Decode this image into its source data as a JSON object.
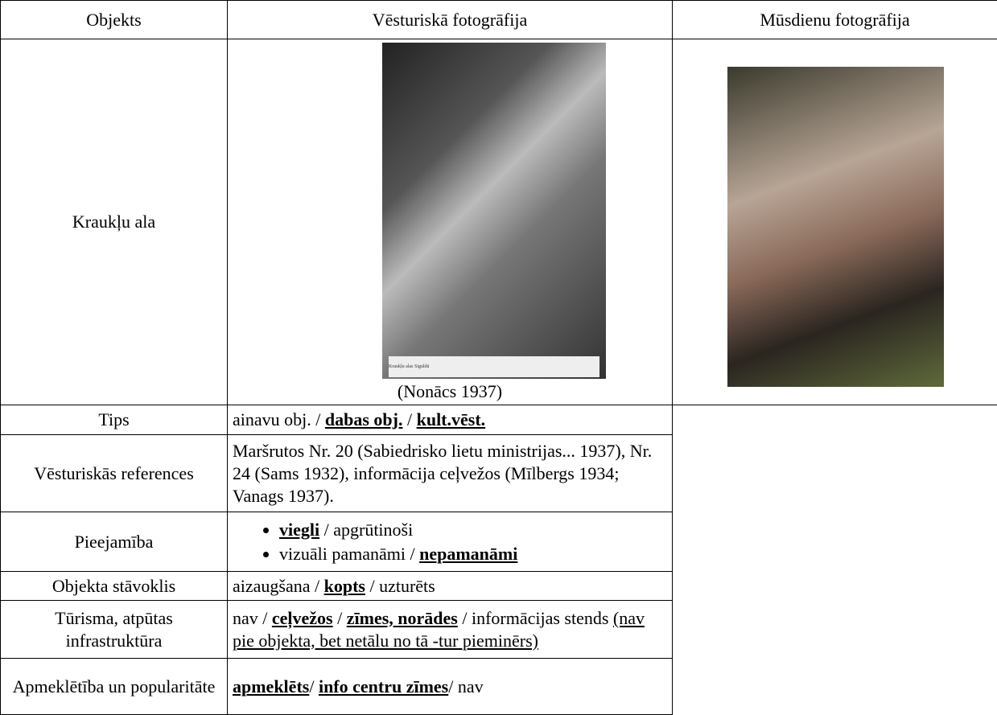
{
  "table": {
    "header": [
      "Objekts",
      "Vēsturiskā fotogrāfija",
      "Mūsdienu fotogrāfija"
    ],
    "photo_row": {
      "label": "Kraukļu ala",
      "historical_inscription": "Kraukļu alas Siguldā",
      "historical_caption": "(Nonācs 1937)"
    },
    "rows": [
      {
        "label": "Tips",
        "parts": [
          {
            "text": "ainavu obj. / "
          },
          {
            "text": "dabas obj.",
            "bold": true,
            "underline": true
          },
          {
            "text": " / "
          },
          {
            "text": "kult.vēst.",
            "bold": true,
            "underline": true
          }
        ]
      },
      {
        "label": "Vēsturiskās references",
        "parts": [
          {
            "text": "Maršrutos Nr. 20 (Sabiedrisko lietu ministrijas... 1937), Nr. 24 (Sams 1932), informācija ceļvežos (Mīlbergs 1934; Vanags 1937)."
          }
        ]
      },
      {
        "label": "Pieejamība",
        "bullets": [
          [
            {
              "text": "viegli",
              "bold": true,
              "underline": true
            },
            {
              "text": " / apgrūtinoši"
            }
          ],
          [
            {
              "text": "vizuāli pamanāmi / "
            },
            {
              "text": "nepamanāmi",
              "bold": true,
              "underline": true
            }
          ]
        ]
      },
      {
        "label": "Objekta stāvoklis",
        "parts": [
          {
            "text": "aizaugšana / "
          },
          {
            "text": "kopts",
            "bold": true,
            "underline": true
          },
          {
            "text": " / uzturēts"
          }
        ]
      },
      {
        "label": "Tūrisma, atpūtas infrastruktūra",
        "parts": [
          {
            "text": "nav / "
          },
          {
            "text": "ceļvežos",
            "bold": true,
            "underline": true
          },
          {
            "text": " / "
          },
          {
            "text": "zīmes, norādes",
            "bold": true,
            "underline": true
          },
          {
            "text": " / informācijas stends "
          },
          {
            "text": "(nav pie objekta, bet netālu no tā -tur pieminērs)",
            "underline": true
          }
        ]
      },
      {
        "label": "Apmeklētība un popularitāte",
        "parts": [
          {
            "text": "apmeklēts",
            "bold": true,
            "underline": true
          },
          {
            "text": "/ "
          },
          {
            "text": "info centru zīmes",
            "bold": true,
            "underline": true
          },
          {
            "text": "/ nav"
          }
        ]
      }
    ]
  }
}
